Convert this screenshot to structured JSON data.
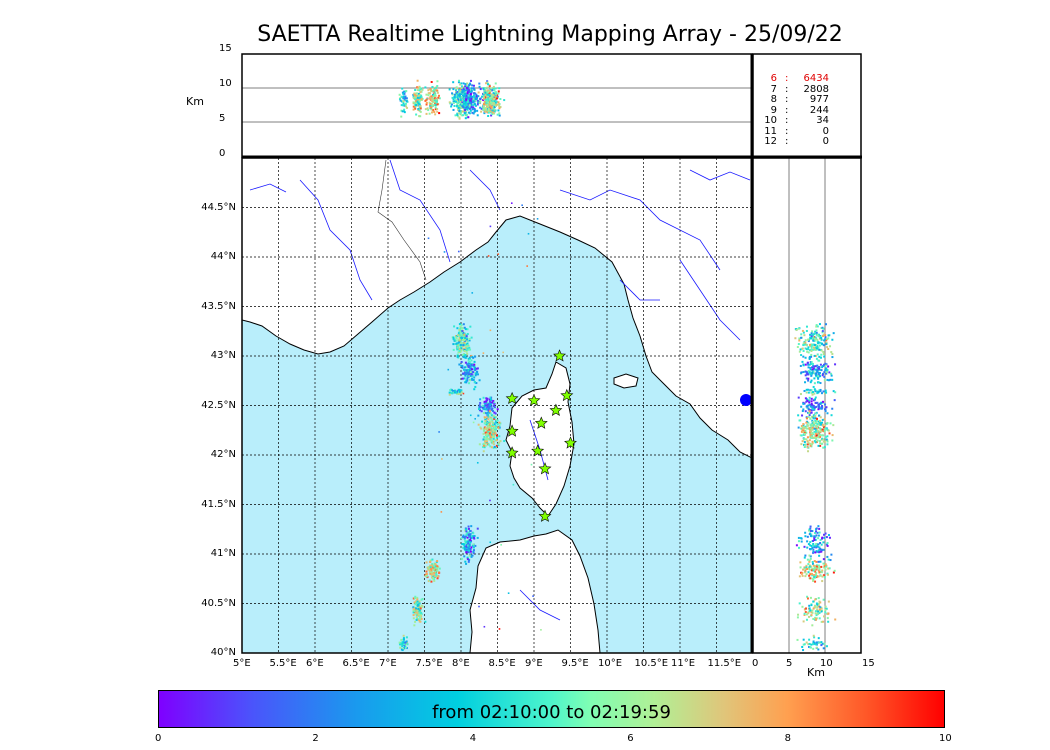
{
  "title": "SAETTA Realtime Lightning Mapping Array - 25/09/22",
  "top_panel": {
    "ylabel": "Km",
    "yticks": [
      "15",
      "10",
      "5",
      "0"
    ]
  },
  "side_panel": {
    "xlabel": "Km",
    "xticks": [
      "0",
      "5",
      "10",
      "15"
    ]
  },
  "map": {
    "lon_ticks": [
      "5°E",
      "5.5°E",
      "6°E",
      "6.5°E",
      "7°E",
      "7.5°E",
      "8°E",
      "8.5°E",
      "9°E",
      "9.5°E",
      "10°E",
      "10.5°E",
      "11°E",
      "11.5°E"
    ],
    "lat_ticks": [
      "44.5°N",
      "44°N",
      "43.5°N",
      "43°N",
      "42.5°N",
      "42°N",
      "41.5°N",
      "41°N",
      "40.5°N",
      "40°N"
    ],
    "colors": {
      "sea": "#b9eefb",
      "land": "#ffffff",
      "rivers": "#1a1aff",
      "star": "#7fff00"
    }
  },
  "stats": [
    {
      "level": "6",
      "count": "6434",
      "highlight": true
    },
    {
      "level": "7",
      "count": "2808",
      "highlight": false
    },
    {
      "level": "8",
      "count": "977",
      "highlight": false
    },
    {
      "level": "9",
      "count": "244",
      "highlight": false
    },
    {
      "level": "10",
      "count": "34",
      "highlight": false
    },
    {
      "level": "11",
      "count": "0",
      "highlight": false
    },
    {
      "level": "12",
      "count": "0",
      "highlight": false
    }
  ],
  "colorbar": {
    "text": "from 02:10:00 to 02:19:59",
    "ticks": [
      "0",
      "2",
      "4",
      "6",
      "8",
      "10"
    ]
  }
}
